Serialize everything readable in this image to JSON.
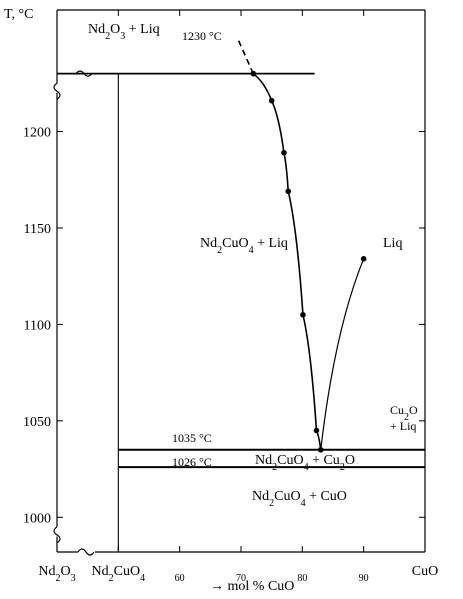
{
  "chart_data": {
    "type": "line",
    "title": "",
    "ylabel": "T, °C",
    "xlabel": "→ mol % CuO",
    "x_range": [
      50,
      100
    ],
    "y_range": [
      982,
      1263
    ],
    "x_ticks": [
      {
        "value": 50,
        "label": "Nd2O3"
      },
      {
        "value": 60,
        "label": "Nd2CuO4"
      },
      {
        "value": 70,
        "label": "60"
      },
      {
        "value": 80,
        "label": "70"
      },
      {
        "value": 90,
        "label": "80"
      },
      {
        "value": 100,
        "label": "90"
      },
      {
        "value": 110,
        "label": "CuO"
      }
    ],
    "y_ticks": [
      1000,
      1050,
      1100,
      1150,
      1200
    ],
    "liquidus_points": [
      {
        "x": 82,
        "y": 1230
      },
      {
        "x": 85,
        "y": 1216
      },
      {
        "x": 87,
        "y": 1189
      },
      {
        "x": 87.7,
        "y": 1169
      },
      {
        "x": 90.1,
        "y": 1105
      },
      {
        "x": 92.3,
        "y": 1045
      },
      {
        "x": 93,
        "y": 1035
      },
      {
        "x": 100,
        "y": 1134
      }
    ],
    "isotherms": [
      {
        "label": "1230 °C",
        "value": 1230
      },
      {
        "label": "1035 °C",
        "value": 1035
      },
      {
        "label": "1026 °C",
        "value": 1026
      }
    ],
    "regions": {
      "top_left": "Nd2O3 + Liq",
      "middle": "Nd2CuO4 + Liq",
      "liquid": "Liq",
      "cu2o_liq_line1": "Cu2O",
      "cu2o_liq_line2": "+ Liq",
      "between_isotherms": "Nd2CuO4 + Cu2O",
      "bottom": "Nd2CuO4 + CuO"
    },
    "grid": false
  }
}
